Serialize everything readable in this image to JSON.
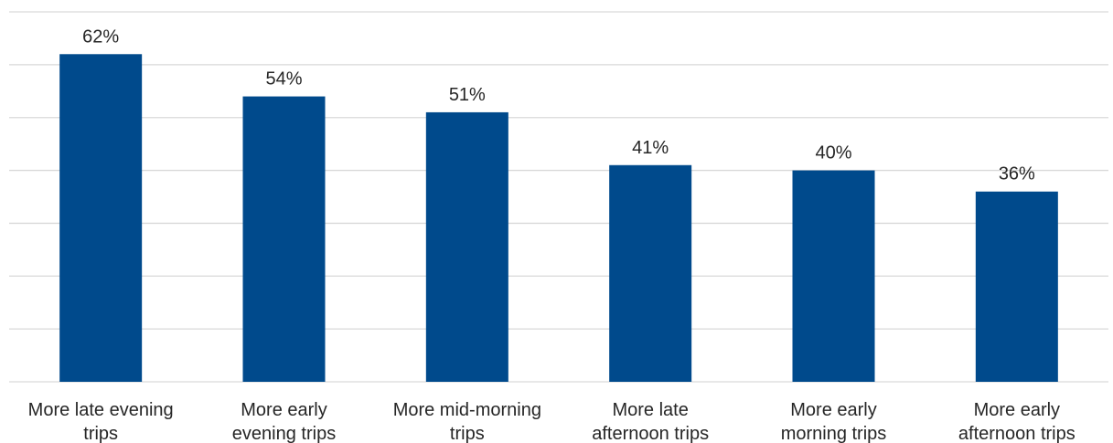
{
  "chart_data": {
    "type": "bar",
    "categories": [
      "More late evening trips",
      "More early evening trips",
      "More mid-morning trips",
      "More late afternoon trips",
      "More early morning trips",
      "More early afternoon trips"
    ],
    "category_lines": [
      [
        "More late evening",
        "trips"
      ],
      [
        "More early",
        "evening trips"
      ],
      [
        "More mid-morning",
        "trips"
      ],
      [
        "More late",
        "afternoon trips"
      ],
      [
        "More early",
        "morning trips"
      ],
      [
        "More early",
        "afternoon trips"
      ]
    ],
    "values": [
      62,
      54,
      51,
      41,
      40,
      36
    ],
    "value_labels": [
      "62%",
      "54%",
      "51%",
      "41%",
      "40%",
      "36%"
    ],
    "ylim": [
      0,
      70
    ],
    "grid": true,
    "legend": "none",
    "bar_color": "#004a8c",
    "grid_color": "#d9d9d9"
  }
}
